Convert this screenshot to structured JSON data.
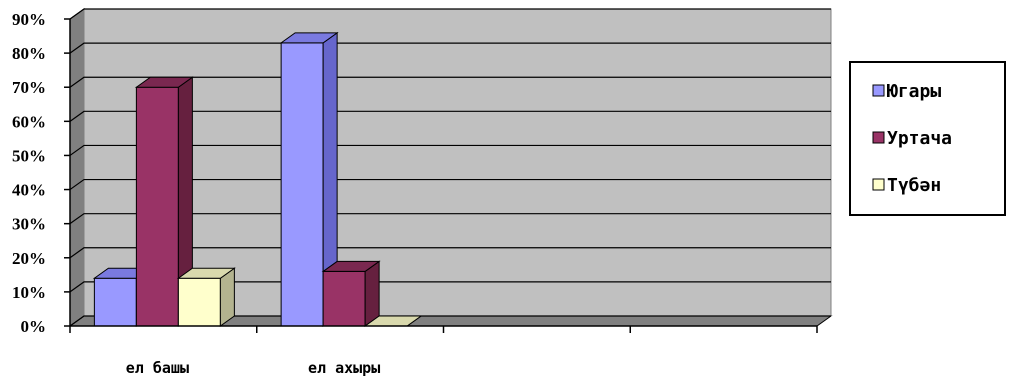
{
  "chart_data": {
    "type": "bar",
    "categories": [
      "ел башы",
      "ел ахыры",
      "",
      ""
    ],
    "series": [
      {
        "name": "Югары",
        "values": [
          14,
          83,
          null,
          null
        ],
        "color": "#9999ff",
        "side": "#6666cc",
        "top": "#7a7ae0"
      },
      {
        "name": "Уртача",
        "values": [
          70,
          16,
          null,
          null
        ],
        "color": "#993366",
        "side": "#66203f",
        "top": "#7a2850"
      },
      {
        "name": "Түбән",
        "values": [
          14,
          0,
          null,
          null
        ],
        "color": "#ffffcc",
        "side": "#b3b38f",
        "top": "#d9d9ad"
      }
    ],
    "y_ticks": [
      "0%",
      "10%",
      "20%",
      "30%",
      "40%",
      "50%",
      "60%",
      "70%",
      "80%",
      "90%"
    ],
    "ylim": [
      0,
      90
    ],
    "grid": true,
    "legend": "right",
    "title": "",
    "xlabel": "",
    "ylabel": "",
    "wall_color": "#c0c0c0",
    "floor_color": "#808080"
  }
}
